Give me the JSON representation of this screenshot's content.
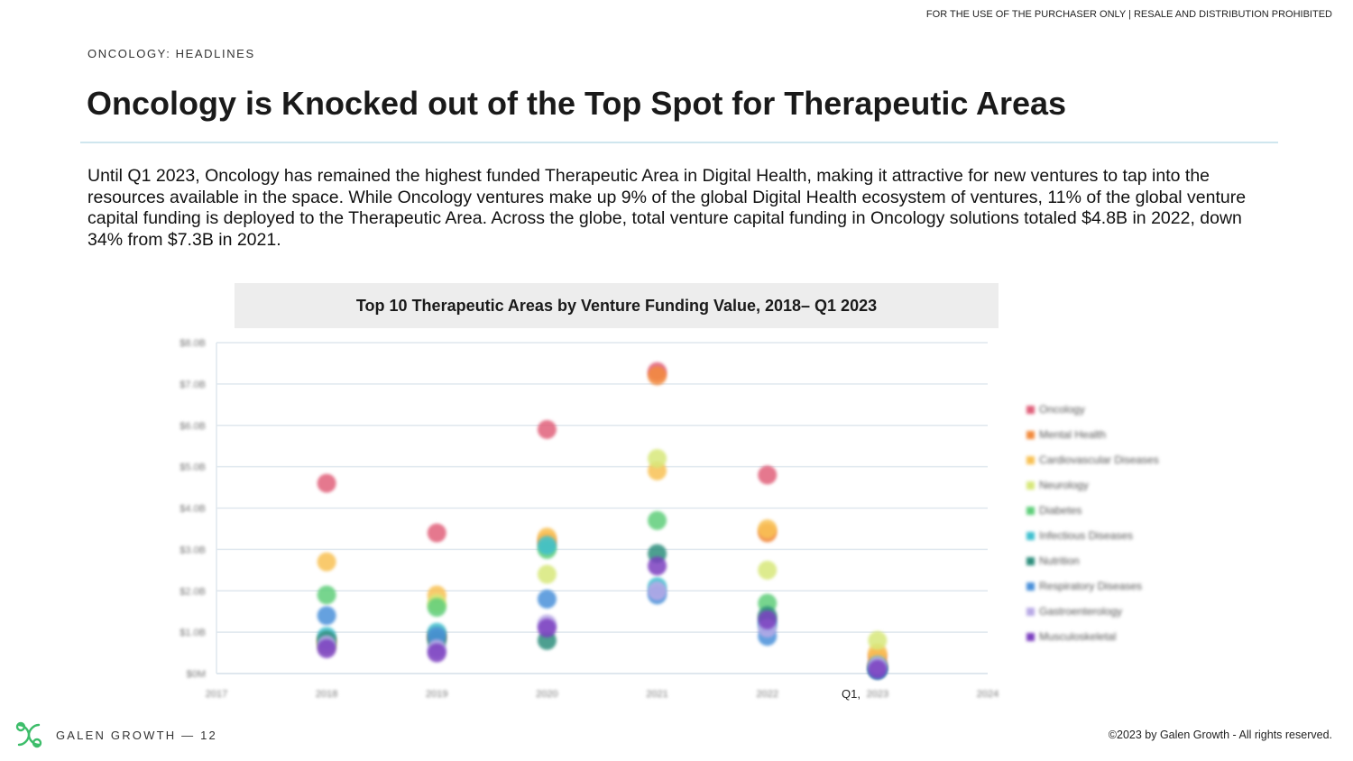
{
  "header": {
    "notice": "FOR THE USE OF THE PURCHASER ONLY | RESALE AND DISTRIBUTION PROHIBITED",
    "section": "ONCOLOGY: HEADLINES",
    "title": "Oncology is Knocked out of the Top Spot for Therapeutic Areas"
  },
  "body_text": "Until Q1 2023, Oncology has remained the highest funded Therapeutic Area in Digital Health, making it attractive for new ventures to tap into the resources available in the space. While Oncology ventures make up 9% of the global Digital Health ecosystem of ventures, 11% of the global venture capital funding is deployed to the Therapeutic Area.  Across the globe, total venture capital funding in Oncology solutions totaled $4.8B in 2022, down 34% from $7.3B in 2021.",
  "chart_data": {
    "type": "scatter",
    "title": "Top 10 Therapeutic Areas by Venture Funding Value, 2018– Q1 2023",
    "x_ticks": [
      "2017",
      "2018",
      "2019",
      "2020",
      "2021",
      "2022",
      "2023",
      "2024"
    ],
    "x_extra_label": "Q1,",
    "y_ticks": [
      "$0M",
      "$1.0B",
      "$2.0B",
      "$3.0B",
      "$4.0B",
      "$5.0B",
      "$6.0B",
      "$7.0B",
      "$8.0B"
    ],
    "xlim": [
      2017,
      2024
    ],
    "ylim": [
      0,
      8
    ],
    "grid": true,
    "legend_position": "right",
    "x": [
      2018,
      2019,
      2020,
      2021,
      2022,
      2023
    ],
    "series": [
      {
        "name": "Oncology",
        "color": "#e0607a",
        "values": [
          4.6,
          3.4,
          5.9,
          7.3,
          4.8,
          0.2
        ]
      },
      {
        "name": "Mental Health",
        "color": "#f28a3c",
        "values": [
          0.8,
          0.9,
          3.2,
          7.2,
          3.4,
          0.4
        ]
      },
      {
        "name": "Cardiovascular Diseases",
        "color": "#f8c154",
        "values": [
          2.7,
          1.9,
          3.3,
          4.9,
          3.5,
          0.5
        ]
      },
      {
        "name": "Neurology",
        "color": "#d7e87a",
        "values": [
          0.7,
          1.7,
          2.4,
          5.2,
          2.5,
          0.8
        ]
      },
      {
        "name": "Diabetes",
        "color": "#5fce7a",
        "values": [
          1.9,
          1.6,
          3.0,
          3.7,
          1.7,
          0.2
        ]
      },
      {
        "name": "Infectious Diseases",
        "color": "#3fc0cf",
        "values": [
          0.9,
          1.0,
          3.1,
          2.1,
          1.2,
          0.1
        ]
      },
      {
        "name": "Nutrition",
        "color": "#2e8e7c",
        "values": [
          0.8,
          0.8,
          0.8,
          2.9,
          1.4,
          0.1
        ]
      },
      {
        "name": "Respiratory Diseases",
        "color": "#4a90d9",
        "values": [
          1.4,
          0.9,
          1.8,
          1.9,
          0.9,
          0.1
        ]
      },
      {
        "name": "Gastroenterology",
        "color": "#b8a9e6",
        "values": [
          0.7,
          0.6,
          1.2,
          2.0,
          1.1,
          0.2
        ]
      },
      {
        "name": "Musculoskeletal",
        "color": "#7b3fbf",
        "values": [
          0.6,
          0.5,
          1.1,
          2.6,
          1.3,
          0.1
        ]
      }
    ]
  },
  "footer": {
    "brand": "GALEN GROWTH  —  12",
    "copyright": "©2023 by Galen Growth  - All rights reserved."
  }
}
